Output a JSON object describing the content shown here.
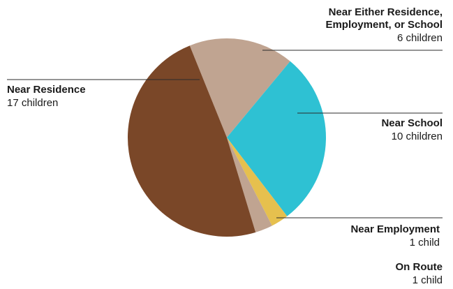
{
  "chart_data": {
    "type": "pie",
    "title": "",
    "colors": {
      "Near Residence": "#7a4728",
      "Near Either Residence, Employment, or School": "#c0a491",
      "Near School": "#2ec1d3",
      "Near Employment": "#e6c04e",
      "On Route": "#c0a491"
    },
    "slices": [
      {
        "label_lines": [
          "Near Either Residence,",
          "Employment, or School"
        ],
        "count_text": "6 children",
        "value": 6
      },
      {
        "label_lines": [
          "Near School"
        ],
        "count_text": "10 children",
        "value": 10
      },
      {
        "label_lines": [
          "Near Employment"
        ],
        "count_text": "1 child",
        "value": 1
      },
      {
        "label_lines": [
          "On Route"
        ],
        "count_text": "1 child",
        "value": 1
      },
      {
        "label_lines": [
          "Near Residence"
        ],
        "count_text": "17 children",
        "value": 17
      }
    ]
  }
}
